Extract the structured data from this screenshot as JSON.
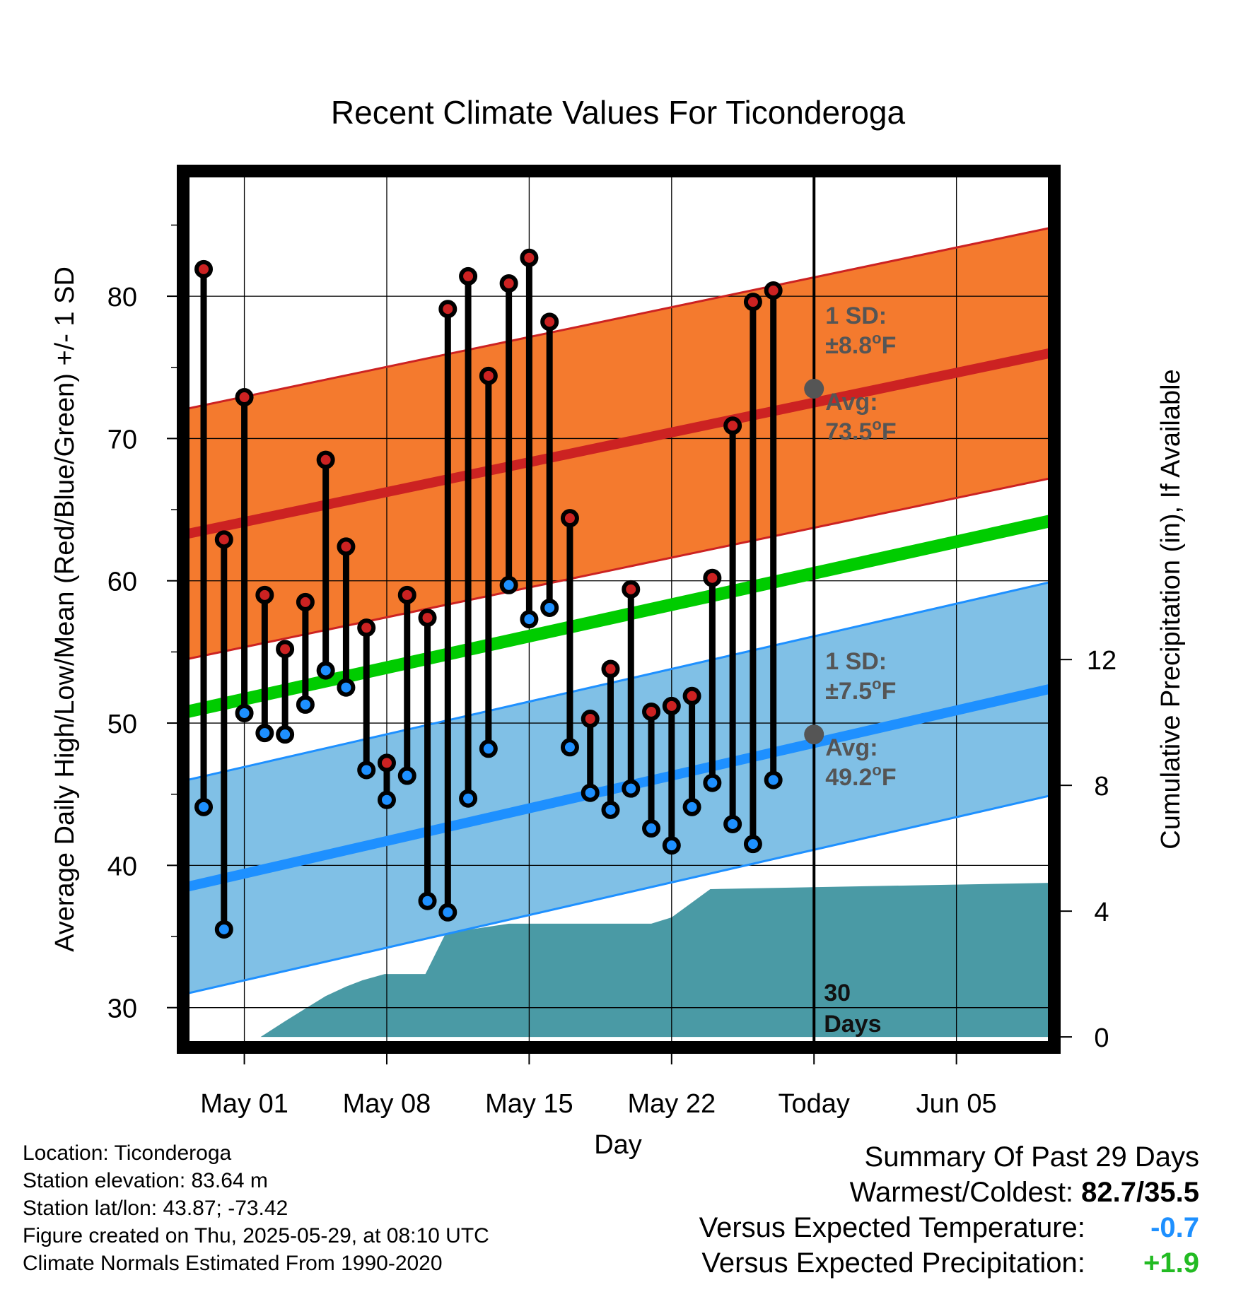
{
  "title": "Recent Climate Values For Ticonderoga",
  "chart_data": {
    "type": "line",
    "title": "Recent Climate Values For Ticonderoga",
    "xlabel": "Day",
    "ylabel": "Average Daily High/Low/Mean (Red/Blue/Green) +/- 1 SD",
    "y2label": "Cumulative Precipitation (in), If Available",
    "x_ticks": [
      "May 01",
      "May 08",
      "May 15",
      "May 22",
      "Today",
      "Jun 05"
    ],
    "x_tick_days": [
      2,
      9,
      16,
      23,
      30,
      37
    ],
    "xlim": [
      -0.8,
      41.6
    ],
    "ylim": [
      27.5,
      88.5
    ],
    "y_ticks": [
      30,
      40,
      50,
      60,
      70,
      80
    ],
    "y2lim": [
      -0.2,
      27.4
    ],
    "y2_ticks": [
      0,
      4,
      8,
      12
    ],
    "grid": true,
    "days": [
      0,
      1,
      2,
      3,
      4,
      5,
      6,
      7,
      8,
      9,
      10,
      11,
      12,
      13,
      14,
      15,
      16,
      17,
      18,
      19,
      20,
      21,
      22,
      23,
      24,
      25,
      26,
      27,
      28
    ],
    "highs": [
      81.9,
      62.9,
      72.9,
      59.0,
      55.2,
      58.5,
      68.5,
      62.4,
      56.7,
      47.2,
      59.0,
      57.4,
      79.1,
      81.4,
      74.4,
      80.9,
      82.7,
      78.2,
      64.4,
      50.3,
      53.8,
      59.4,
      50.8,
      51.2,
      51.9,
      60.2,
      70.9,
      79.6,
      80.4
    ],
    "lows": [
      44.1,
      35.5,
      50.7,
      49.3,
      49.2,
      51.3,
      53.7,
      52.5,
      46.7,
      44.6,
      46.3,
      37.5,
      36.7,
      44.7,
      48.2,
      59.7,
      57.3,
      58.1,
      48.3,
      45.1,
      43.9,
      45.4,
      42.6,
      41.4,
      44.1,
      45.8,
      42.9,
      41.5,
      46.0
    ],
    "series": [
      {
        "name": "Avg High",
        "day_start": -0.8,
        "day_end": 41.6,
        "start": 63.3,
        "end": 76.0
      },
      {
        "name": "Avg Mean",
        "day_start": -0.8,
        "day_end": 41.6,
        "start": 50.8,
        "end": 64.2
      },
      {
        "name": "Avg Low",
        "day_start": -0.8,
        "day_end": 41.6,
        "start": 38.5,
        "end": 52.4
      }
    ],
    "high_sd": 8.8,
    "low_sd": 7.5,
    "precip_days": [
      2.8,
      4.0,
      5.0,
      6.0,
      7.0,
      7.8,
      8.9,
      9.8,
      10.9,
      11.9,
      15.0,
      16.0,
      17.2,
      22.0,
      23.0,
      24.9,
      41.6
    ],
    "precip_values": [
      0.0,
      0.5,
      0.9,
      1.3,
      1.6,
      1.8,
      2.0,
      2.0,
      2.0,
      3.3,
      3.6,
      3.6,
      3.6,
      3.6,
      3.8,
      4.7,
      4.9
    ],
    "precip_extra": [
      [
        5.4,
        3.85
      ],
      [
        5.2,
        4.7
      ],
      [
        4.8,
        4.7
      ]
    ],
    "today_day": 30,
    "today_high": 73.5,
    "today_low": 49.2,
    "annotations": {
      "high_sd_line1": "1 SD:",
      "high_sd_line2": "±8.8",
      "high_avg_line1": "Avg:",
      "high_avg_line2": "73.5",
      "low_sd_line1": "1 SD:",
      "low_sd_line2": "±7.5",
      "low_avg_line1": "Avg:",
      "low_avg_line2": "49.2",
      "degree_unit": "o",
      "f_unit": "F",
      "period_line1": "30",
      "period_line2": "Days"
    },
    "colors": {
      "high": "#cc2222",
      "low": "#1e90ff",
      "mean": "#00cc00",
      "high_band": "#f47a2e",
      "low_band": "#80c0e6",
      "precip": "#4a9aa5",
      "annotation": "#555555"
    }
  },
  "footer": {
    "location": "Location: Ticonderoga",
    "elevation": "Station elevation: 83.64 m",
    "latlon": "Station lat/lon: 43.87; -73.42",
    "created": "Figure created on Thu, 2025-05-29, at 08:10 UTC",
    "normals": "Climate Normals Estimated From 1990-2020"
  },
  "summary": {
    "heading": "Summary Of Past 29 Days",
    "warmest_coldest_label": "Warmest/Coldest:",
    "warmest_coldest_value": "82.7/35.5",
    "temp_label": "Versus Expected Temperature:",
    "temp_value": "-0.7",
    "precip_label": "Versus Expected Precipitation:",
    "precip_value": "+1.9",
    "temp_color": "#1e90ff",
    "precip_color": "#22bb22"
  }
}
